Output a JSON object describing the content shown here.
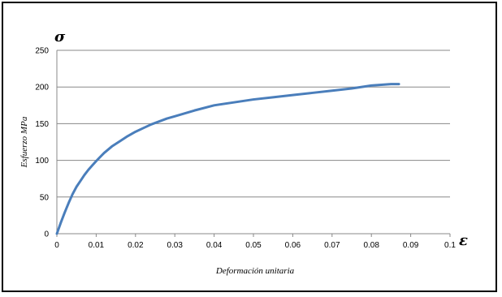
{
  "chart_data": {
    "type": "line",
    "title": "",
    "xlabel": "Deformación unitaria",
    "ylabel": "Esfuerzo MPa",
    "y_symbol": "σ",
    "x_symbol": "ε",
    "xlim": [
      0,
      0.1
    ],
    "ylim": [
      0,
      250
    ],
    "x_ticks": [
      "0",
      "0.01",
      "0.02",
      "0.03",
      "0.04",
      "0.05",
      "0.06",
      "0.07",
      "0.08",
      "0.09",
      "0.1"
    ],
    "y_ticks": [
      "0",
      "50",
      "100",
      "150",
      "200",
      "250"
    ],
    "grid": "horizontal",
    "legend": "none",
    "line_color": "#4a7ebb",
    "series": [
      {
        "x": [
          0,
          0.001,
          0.002,
          0.003,
          0.004,
          0.005,
          0.006,
          0.007,
          0.008,
          0.009,
          0.01,
          0.012,
          0.014,
          0.016,
          0.018,
          0.02,
          0.022,
          0.024,
          0.026,
          0.028,
          0.03,
          0.035,
          0.04,
          0.045,
          0.05,
          0.055,
          0.06,
          0.065,
          0.07,
          0.075,
          0.08,
          0.085,
          0.087
        ],
        "y": [
          0,
          15,
          29,
          42,
          54,
          64,
          72,
          80,
          87,
          93,
          99,
          110,
          119,
          126,
          133,
          139,
          144,
          149,
          153,
          157,
          160,
          168,
          175,
          179,
          183,
          186,
          189,
          192,
          195,
          198,
          202,
          204,
          204
        ]
      }
    ]
  }
}
